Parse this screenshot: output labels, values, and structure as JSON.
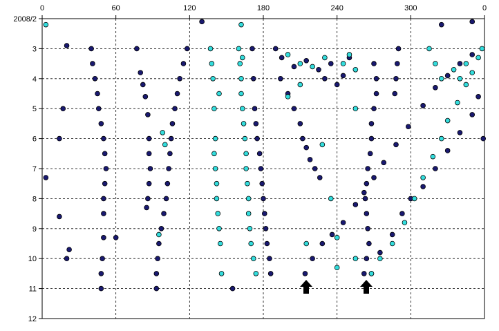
{
  "chart_data": {
    "type": "scatter",
    "xlim": [
      0,
      360
    ],
    "ylim": [
      2,
      12
    ],
    "grid": true,
    "y_inverted": true,
    "xticks": [
      0,
      60,
      120,
      180,
      240,
      300,
      {
        "value": 360,
        "label": "0"
      }
    ],
    "yticks": [
      {
        "value": 2,
        "label": "2008/2"
      },
      3,
      4,
      5,
      6,
      7,
      8,
      9,
      10,
      11,
      12
    ],
    "series": [
      {
        "color": "#191970",
        "x": [
          40,
          41,
          43,
          45,
          46,
          48,
          50,
          51,
          52,
          51,
          50,
          50,
          50,
          49,
          48,
          48,
          118,
          115,
          112,
          110,
          108,
          106,
          105,
          104,
          103,
          102,
          101,
          99,
          97,
          95,
          94,
          93,
          87,
          87,
          88,
          87,
          86,
          85,
          82,
          84,
          86,
          80,
          77,
          171,
          172,
          173,
          174,
          175,
          177,
          178,
          179,
          180,
          181,
          182,
          183,
          185,
          186,
          190,
          194,
          200,
          205,
          210,
          212,
          215,
          218,
          222,
          226,
          214,
          220,
          228,
          236,
          245,
          255,
          262,
          270,
          278,
          288,
          298,
          310,
          320,
          330,
          340,
          350,
          270,
          272,
          272,
          270,
          268,
          268,
          267,
          265,
          264,
          263,
          264,
          265,
          266,
          264,
          262,
          290,
          289,
          288,
          287,
          268,
          275,
          285,
          293,
          300,
          310,
          320,
          330,
          340,
          350,
          355,
          195,
          205,
          215,
          225,
          235,
          245,
          240,
          230,
          250,
          3,
          14,
          17,
          20,
          20,
          14,
          22,
          60,
          93,
          130,
          325,
          350,
          359,
          155
        ],
        "values": [
          3,
          3.5,
          4,
          4.5,
          5,
          5.5,
          6,
          6.5,
          7,
          7.5,
          8,
          8.5,
          9.3,
          10,
          10.5,
          11,
          3,
          3.5,
          4,
          4.5,
          5,
          5.5,
          6,
          6.5,
          7,
          7.5,
          8,
          8.5,
          9,
          9.5,
          10,
          10.5,
          6,
          6.5,
          7,
          7.5,
          8,
          8.3,
          4.2,
          4.6,
          5.2,
          3.8,
          3,
          3,
          4,
          5,
          5.5,
          6,
          6.5,
          7,
          7.5,
          8,
          8.5,
          9,
          9.5,
          10,
          10.5,
          3,
          4,
          4.5,
          5,
          5.5,
          6,
          6.3,
          6.7,
          7,
          7.3,
          10.5,
          10,
          9.5,
          9.2,
          8.8,
          8.2,
          7.8,
          7.3,
          6.8,
          6.2,
          5.6,
          4.9,
          4.3,
          3.9,
          3.5,
          3.2,
          3.5,
          4,
          4.5,
          5,
          5.5,
          6,
          6.5,
          7,
          7.5,
          8,
          8.5,
          9,
          9.5,
          10,
          10.5,
          3,
          3.5,
          4,
          4.5,
          10.5,
          9.8,
          9.2,
          8.5,
          8,
          7.6,
          7,
          6.4,
          5.8,
          5.2,
          4.6,
          3.3,
          3.6,
          3.4,
          3.7,
          3.5,
          3.9,
          4.2,
          4,
          3.3,
          7.3,
          6,
          5,
          2.9,
          10,
          8.6,
          9.7,
          9.3,
          11,
          2.1,
          2.2,
          2.1,
          6,
          11
        ]
      },
      {
        "color": "#33dddd",
        "x": [
          137,
          139,
          140,
          141,
          140,
          141,
          142,
          142,
          143,
          144,
          145,
          146,
          144,
          138,
          160,
          161,
          162,
          162,
          163,
          164,
          165,
          166,
          166,
          167,
          168,
          168,
          169,
          170,
          172,
          174,
          163,
          268,
          275,
          285,
          295,
          303,
          310,
          318,
          325,
          330,
          338,
          345,
          350,
          355,
          358,
          315,
          320,
          325,
          335,
          340,
          345,
          200,
          210,
          220,
          230,
          245,
          255,
          250,
          210,
          200,
          3,
          162,
          100,
          95,
          98,
          215,
          240,
          240,
          255,
          228,
          235,
          255
        ],
        "values": [
          3,
          4,
          5,
          6,
          6.5,
          7,
          7.5,
          8,
          8.5,
          9,
          9.5,
          10.5,
          4.5,
          3.5,
          3,
          3.5,
          4,
          4.5,
          5,
          5.5,
          6,
          6.5,
          7,
          7.5,
          8,
          8.5,
          9,
          9.5,
          10,
          10.5,
          3.3,
          10.5,
          10,
          9.5,
          8.8,
          8,
          7.3,
          6.6,
          6,
          5.4,
          4.8,
          4.2,
          3.8,
          3.3,
          3,
          3,
          3.5,
          4,
          3.7,
          4,
          3.5,
          3.2,
          3.5,
          3.6,
          3.3,
          3.5,
          3.7,
          3.2,
          4.2,
          4.6,
          2.2,
          2.2,
          6.2,
          9.2,
          5.8,
          9.5,
          9.3,
          10.3,
          10,
          6.2,
          8,
          5
        ]
      }
    ]
  }
}
